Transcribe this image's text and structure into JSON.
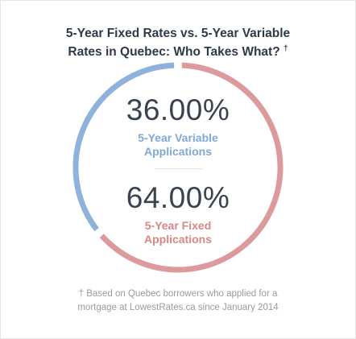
{
  "title": {
    "line1": "5-Year Fixed Rates vs. 5-Year Variable",
    "line2": "Rates in Quebec: Who Takes What?",
    "dagger": "†"
  },
  "chart_data": {
    "type": "pie",
    "slices": [
      {
        "name": "5-Year Variable Applications",
        "value": 36.0,
        "percent_label": "36.00%",
        "label_line1": "5-Year Variable",
        "label_line2": "Applications",
        "color": "#8eb2dc"
      },
      {
        "name": "5-Year Fixed Applications",
        "value": 64.0,
        "percent_label": "64.00%",
        "label_line1": "5-Year Fixed",
        "label_line2": "Applications",
        "color": "#dc9a9c"
      }
    ],
    "style": "donut"
  },
  "colors": {
    "variable_text": "#7fa8d6",
    "fixed_text": "#d98686",
    "title": "#2e3a48"
  },
  "footnote": {
    "line1": "† Based on Quebec borrowers who applied for a",
    "line2": "mortgage at LowestRates.ca since January 2014"
  }
}
